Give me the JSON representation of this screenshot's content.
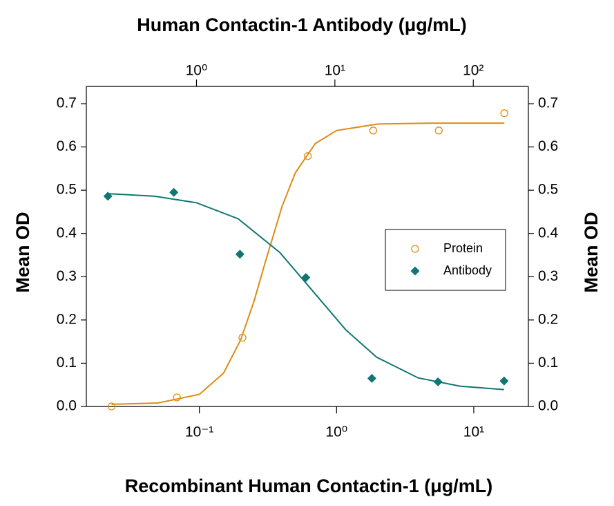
{
  "chart_data": {
    "type": "scatter",
    "title": "Human Contactin-1 Antibody (μg/mL)",
    "xlabel": "Recombinant Human Contactin-1 (μg/mL)",
    "ylabel": "Mean OD",
    "y2label": "Mean OD",
    "xscale": "log",
    "x2scale": "log",
    "xlim": [
      0.015,
      25
    ],
    "xticks": [
      {
        "value": 0.1,
        "label": "10⁻¹"
      },
      {
        "value": 1,
        "label": "10⁰"
      },
      {
        "value": 10,
        "label": "10¹"
      }
    ],
    "x2lim": [
      0.16,
      250
    ],
    "x2ticks": [
      {
        "value": 1,
        "label": "10⁰"
      },
      {
        "value": 10,
        "label": "10¹"
      },
      {
        "value": 100,
        "label": "10²"
      }
    ],
    "ylim": [
      0,
      0.74
    ],
    "yticks": [
      {
        "value": 0,
        "label": "0.0"
      },
      0.1,
      0.2,
      0.3,
      0.4,
      0.5,
      0.6,
      0.7
    ],
    "y2lim": [
      0,
      0.74
    ],
    "y2ticks": [
      {
        "value": 0,
        "label": "0.0"
      },
      0.1,
      0.2,
      0.3,
      0.4,
      0.5,
      0.6,
      0.7
    ],
    "legend": "center right",
    "series": [
      {
        "name": "Protein",
        "color": "#e08b12",
        "marker": "circle",
        "x": [
          0.0229,
          0.0686,
          0.206,
          0.617,
          1.85,
          5.56,
          16.7
        ],
        "values": [
          0.0,
          0.021,
          0.159,
          0.579,
          0.638,
          0.638,
          0.678
        ]
      },
      {
        "name": "Antibody",
        "color": "#0f7672",
        "marker": "diamond",
        "axis": "x2",
        "x": [
          0.229,
          0.686,
          2.06,
          6.17,
          18.5,
          55.6,
          167
        ],
        "values": [
          0.486,
          0.495,
          0.352,
          0.298,
          0.065,
          0.057,
          0.059
        ]
      }
    ],
    "curves": [
      {
        "color": "#e08b12",
        "x": [
          0.0229,
          0.05,
          0.1,
          0.15,
          0.2,
          0.25,
          0.3,
          0.4,
          0.5,
          0.7,
          1,
          2,
          5,
          16.7
        ],
        "values": [
          0.005,
          0.008,
          0.028,
          0.077,
          0.154,
          0.243,
          0.33,
          0.462,
          0.54,
          0.608,
          0.638,
          0.653,
          0.655,
          0.655
        ]
      },
      {
        "color": "#0f7672",
        "axis": "x2",
        "x": [
          0.229,
          0.5,
          1,
          2,
          4,
          7,
          12,
          20,
          40,
          80,
          167
        ],
        "values": [
          0.492,
          0.486,
          0.471,
          0.434,
          0.356,
          0.265,
          0.177,
          0.114,
          0.066,
          0.047,
          0.039
        ]
      }
    ]
  }
}
